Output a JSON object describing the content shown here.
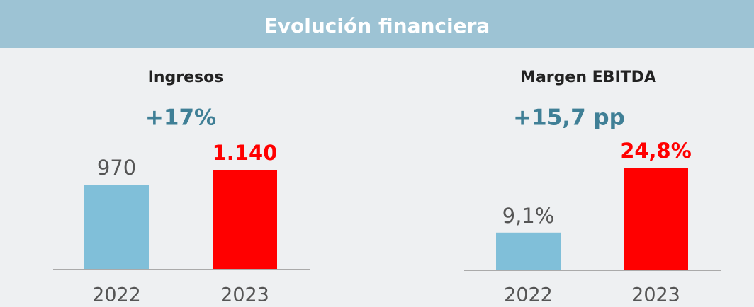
{
  "header": {
    "title": "Evolución financiera"
  },
  "chart_data": [
    {
      "type": "bar",
      "title": "Ingresos",
      "annotation": "+17%",
      "categories": [
        "2022",
        "2023"
      ],
      "values": [
        970,
        1140
      ],
      "value_labels": [
        "970",
        "1.140"
      ],
      "colors": [
        "#80bfd9",
        "#ff0000"
      ]
    },
    {
      "type": "bar",
      "title": "Margen EBITDA",
      "annotation": "+15,7 pp",
      "categories": [
        "2022",
        "2023"
      ],
      "values": [
        9.1,
        24.8
      ],
      "value_labels": [
        "9,1%",
        "24,8%"
      ],
      "colors": [
        "#80bfd9",
        "#ff0000"
      ]
    }
  ]
}
